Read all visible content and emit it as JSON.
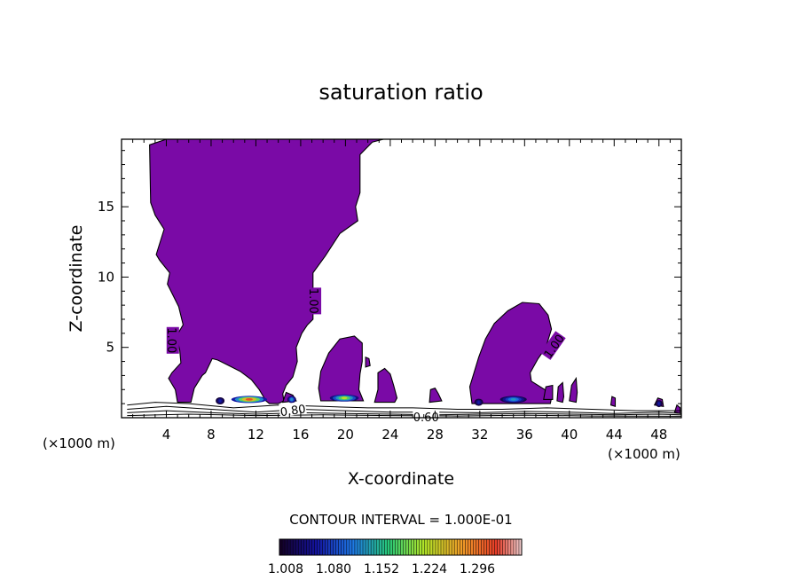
{
  "chart_data": {
    "type": "contour",
    "title": "saturation ratio",
    "xlabel": "X-coordinate",
    "ylabel": "Z-coordinate",
    "x_unit_left": "(×1000 m)",
    "x_unit_right": "(×1000 m)",
    "xlim": [
      0,
      50
    ],
    "ylim": [
      0,
      19.8
    ],
    "x_ticks": [
      4,
      8,
      12,
      16,
      20,
      24,
      28,
      32,
      36,
      40,
      44,
      48
    ],
    "y_ticks": [
      5,
      10,
      15
    ],
    "contour_interval_label": "CONTOUR INTERVAL = 1.000E-01",
    "contour_labels": [
      "1.00",
      "1.00",
      "1.00",
      "0.80",
      "0.60"
    ],
    "colorbar": {
      "min": 1.008,
      "max": 1.32,
      "tick_labels": [
        "1.008",
        "1.080",
        "1.152",
        "1.224",
        "1.296"
      ]
    },
    "fill_color": "#7a0aa6",
    "regions": [
      {
        "name": "main-plume",
        "outline": [
          [
            5.0,
            1.1
          ],
          [
            4.8,
            2.0
          ],
          [
            4.2,
            2.8
          ],
          [
            4.5,
            3.2
          ],
          [
            5.3,
            3.9
          ],
          [
            5.2,
            4.8
          ],
          [
            4.9,
            5.8
          ],
          [
            5.5,
            6.6
          ],
          [
            5.1,
            7.9
          ],
          [
            4.1,
            9.5
          ],
          [
            4.3,
            10.3
          ],
          [
            3.4,
            11.2
          ],
          [
            3.1,
            11.6
          ],
          [
            3.8,
            13.4
          ],
          [
            3.0,
            14.4
          ],
          [
            2.6,
            15.3
          ],
          [
            2.5,
            19.4
          ],
          [
            4.0,
            19.8
          ],
          [
            23.4,
            19.8
          ],
          [
            22.4,
            19.6
          ],
          [
            21.3,
            18.7
          ],
          [
            21.3,
            16.0
          ],
          [
            20.9,
            15.0
          ],
          [
            21.1,
            14.0
          ],
          [
            19.5,
            13.1
          ],
          [
            18.2,
            11.5
          ],
          [
            17.1,
            10.3
          ],
          [
            17.1,
            7.0
          ],
          [
            16.6,
            6.6
          ],
          [
            16.1,
            6.0
          ],
          [
            15.6,
            5.0
          ],
          [
            15.7,
            4.0
          ],
          [
            15.3,
            2.9
          ],
          [
            14.7,
            2.3
          ],
          [
            14.4,
            1.7
          ],
          [
            14.5,
            1.2
          ],
          [
            14.0,
            1.0
          ],
          [
            13.2,
            1.0
          ],
          [
            12.9,
            1.2
          ],
          [
            12.3,
            2.0
          ],
          [
            11.6,
            2.7
          ],
          [
            10.6,
            3.3
          ],
          [
            8.6,
            4.1
          ],
          [
            8.1,
            4.2
          ],
          [
            7.5,
            3.2
          ],
          [
            7.2,
            3.0
          ],
          [
            6.5,
            2.1
          ],
          [
            6.2,
            1.1
          ]
        ]
      },
      {
        "name": "plume-18",
        "outline": [
          [
            17.8,
            1.2
          ],
          [
            17.6,
            2.1
          ],
          [
            17.8,
            3.3
          ],
          [
            18.5,
            4.6
          ],
          [
            19.5,
            5.6
          ],
          [
            20.8,
            5.8
          ],
          [
            21.5,
            5.3
          ],
          [
            21.5,
            4.0
          ],
          [
            21.3,
            3.1
          ],
          [
            21.2,
            2.0
          ],
          [
            21.6,
            1.2
          ]
        ]
      },
      {
        "name": "plume-23",
        "outline": [
          [
            22.6,
            1.1
          ],
          [
            22.9,
            2.0
          ],
          [
            22.9,
            3.2
          ],
          [
            23.5,
            3.5
          ],
          [
            24.0,
            3.1
          ],
          [
            24.3,
            2.3
          ],
          [
            24.6,
            1.4
          ],
          [
            24.4,
            1.1
          ]
        ]
      },
      {
        "name": "plume-35",
        "outline": [
          [
            31.3,
            1.0
          ],
          [
            31.1,
            2.2
          ],
          [
            31.9,
            4.3
          ],
          [
            32.5,
            5.6
          ],
          [
            33.3,
            6.7
          ],
          [
            34.5,
            7.6
          ],
          [
            35.8,
            8.2
          ],
          [
            37.3,
            8.1
          ],
          [
            38.1,
            7.3
          ],
          [
            38.4,
            6.3
          ],
          [
            37.9,
            5.0
          ],
          [
            37.2,
            4.2
          ],
          [
            36.5,
            3.2
          ],
          [
            36.6,
            2.6
          ],
          [
            37.8,
            2.0
          ],
          [
            38.4,
            1.4
          ],
          [
            38.3,
            1.0
          ]
        ]
      },
      {
        "name": "blob-17",
        "outline": [
          [
            14.4,
            1.1
          ],
          [
            14.7,
            1.8
          ],
          [
            15.3,
            1.6
          ],
          [
            15.6,
            1.2
          ]
        ]
      },
      {
        "name": "blob-22",
        "outline": [
          [
            21.8,
            4.3
          ],
          [
            21.8,
            3.6
          ],
          [
            22.2,
            3.7
          ],
          [
            22.1,
            4.2
          ]
        ]
      },
      {
        "name": "blob-28",
        "outline": [
          [
            27.5,
            1.1
          ],
          [
            27.6,
            2.0
          ],
          [
            28.0,
            2.1
          ],
          [
            28.3,
            1.7
          ],
          [
            28.6,
            1.2
          ]
        ]
      },
      {
        "name": "blob-38",
        "outline": [
          [
            37.7,
            1.3
          ],
          [
            37.9,
            2.2
          ],
          [
            38.5,
            2.3
          ],
          [
            38.5,
            1.3
          ]
        ]
      },
      {
        "name": "blob-39",
        "outline": [
          [
            38.9,
            1.2
          ],
          [
            39.0,
            2.2
          ],
          [
            39.4,
            2.5
          ],
          [
            39.5,
            1.5
          ],
          [
            39.4,
            1.1
          ]
        ]
      },
      {
        "name": "blob-40",
        "outline": [
          [
            40.0,
            1.2
          ],
          [
            40.2,
            2.3
          ],
          [
            40.6,
            2.8
          ],
          [
            40.7,
            1.8
          ],
          [
            40.6,
            1.1
          ]
        ]
      },
      {
        "name": "blob-44",
        "outline": [
          [
            43.7,
            0.9
          ],
          [
            43.8,
            1.5
          ],
          [
            44.1,
            1.4
          ],
          [
            44.1,
            0.8
          ]
        ]
      },
      {
        "name": "blob-47",
        "outline": [
          [
            47.6,
            0.9
          ],
          [
            47.9,
            1.4
          ],
          [
            48.3,
            1.3
          ],
          [
            48.4,
            0.8
          ]
        ]
      },
      {
        "name": "blob-49",
        "outline": [
          [
            49.4,
            0.4
          ],
          [
            49.6,
            0.9
          ],
          [
            49.9,
            0.7
          ],
          [
            49.9,
            0.3
          ]
        ]
      }
    ],
    "hotspots": [
      {
        "x": 11.4,
        "z": 1.3,
        "w": 3.2,
        "max": 1.28
      },
      {
        "x": 19.9,
        "z": 1.4,
        "w": 2.6,
        "max": 1.2
      },
      {
        "x": 15.2,
        "z": 1.3,
        "w": 0.8,
        "max": 1.12
      },
      {
        "x": 35.0,
        "z": 1.3,
        "w": 2.4,
        "max": 1.12
      },
      {
        "x": 8.8,
        "z": 1.2,
        "w": 0.8,
        "max": 1.06
      },
      {
        "x": 31.9,
        "z": 1.1,
        "w": 0.8,
        "max": 1.06
      },
      {
        "x": 48.0,
        "z": 1.0,
        "w": 0.6,
        "max": 1.06
      }
    ],
    "contour_lines": [
      {
        "level": 0.8,
        "points": [
          [
            0.5,
            0.9
          ],
          [
            3,
            1.1
          ],
          [
            6,
            1.0
          ],
          [
            10,
            0.7
          ],
          [
            14,
            0.9
          ],
          [
            18,
            0.8
          ],
          [
            22,
            0.7
          ],
          [
            26,
            0.7
          ],
          [
            30,
            0.6
          ],
          [
            34,
            0.6
          ],
          [
            38,
            0.7
          ],
          [
            42,
            0.6
          ],
          [
            46,
            0.5
          ],
          [
            50,
            0.5
          ]
        ]
      },
      {
        "level": 0.7,
        "points": [
          [
            0.5,
            0.6
          ],
          [
            4,
            0.8
          ],
          [
            8,
            0.6
          ],
          [
            12,
            0.4
          ],
          [
            16,
            0.6
          ],
          [
            20,
            0.5
          ],
          [
            24,
            0.4
          ],
          [
            28,
            0.4
          ],
          [
            32,
            0.35
          ],
          [
            36,
            0.45
          ],
          [
            40,
            0.4
          ],
          [
            44,
            0.3
          ],
          [
            48,
            0.4
          ],
          [
            50,
            0.3
          ]
        ]
      },
      {
        "level": 0.6,
        "points": [
          [
            0.5,
            0.35
          ],
          [
            4,
            0.5
          ],
          [
            8,
            0.35
          ],
          [
            12,
            0.25
          ],
          [
            16,
            0.35
          ],
          [
            20,
            0.3
          ],
          [
            24,
            0.25
          ],
          [
            28,
            0.2
          ],
          [
            32,
            0.25
          ],
          [
            36,
            0.3
          ],
          [
            40,
            0.25
          ],
          [
            44,
            0.2
          ],
          [
            48,
            0.25
          ],
          [
            50,
            0.2
          ]
        ]
      },
      {
        "level": 0.5,
        "points": [
          [
            0.5,
            0.15
          ],
          [
            6,
            0.25
          ],
          [
            12,
            0.15
          ],
          [
            18,
            0.2
          ],
          [
            24,
            0.15
          ],
          [
            30,
            0.12
          ],
          [
            36,
            0.18
          ],
          [
            42,
            0.12
          ],
          [
            50,
            0.1
          ]
        ]
      }
    ]
  }
}
